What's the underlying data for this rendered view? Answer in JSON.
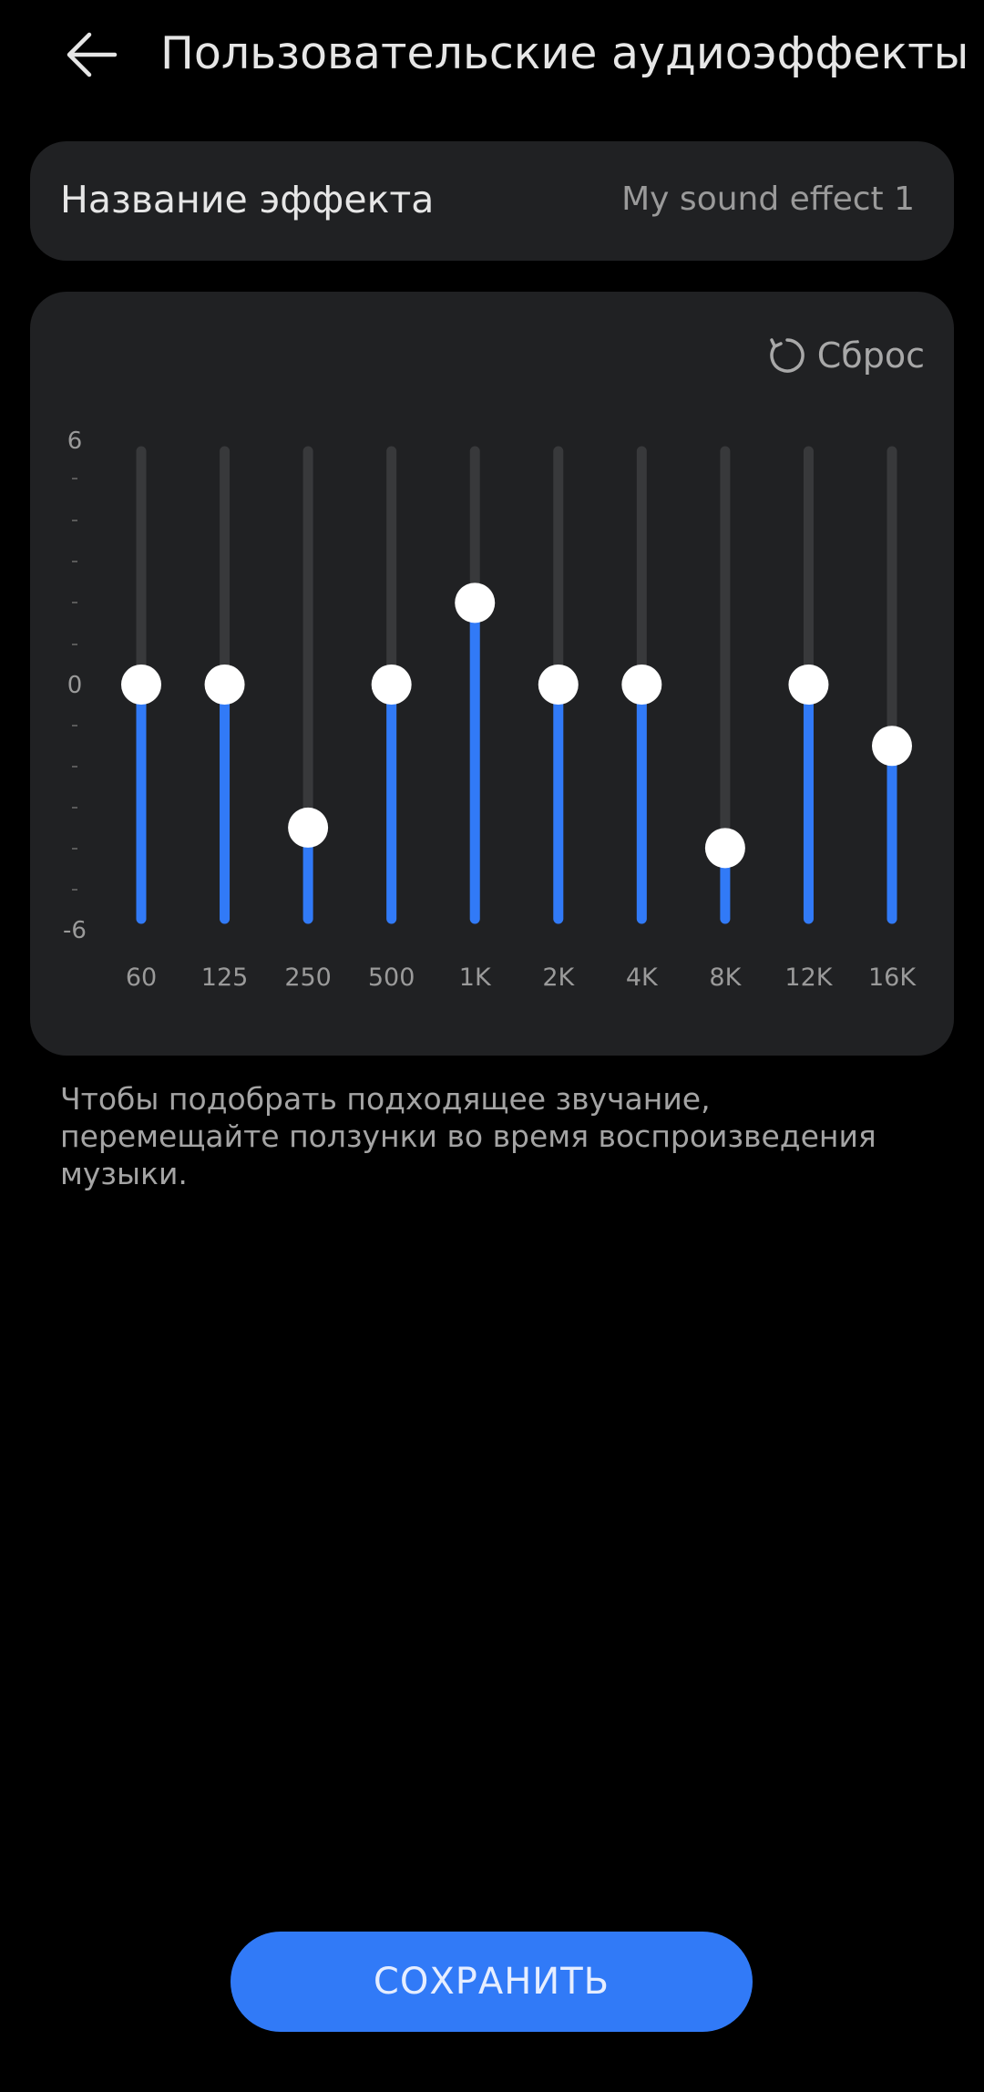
{
  "header": {
    "back_icon": "back-arrow-icon",
    "title": "Пользовательские аудиоэффекты"
  },
  "effect_name": {
    "label": "Название эффекта",
    "value": "My sound effect 1"
  },
  "equalizer": {
    "reset_label": "Сброс",
    "reset_icon": "reset-icon",
    "scale": {
      "max_label": "6",
      "mid_label": "0",
      "min_label": "-6",
      "min": -6,
      "max": 6
    },
    "bands": [
      {
        "label": "60",
        "level": 0
      },
      {
        "label": "125",
        "level": 0
      },
      {
        "label": "250",
        "level": -3.5
      },
      {
        "label": "500",
        "level": 0
      },
      {
        "label": "1K",
        "level": 2
      },
      {
        "label": "2K",
        "level": 0
      },
      {
        "label": "4K",
        "level": 0
      },
      {
        "label": "8K",
        "level": -4
      },
      {
        "label": "12K",
        "level": 0
      },
      {
        "label": "16K",
        "level": -1.5
      }
    ],
    "colors": {
      "fill": "#317af7",
      "track": "#38393b",
      "knob": "#ffffff"
    }
  },
  "hint_text": "Чтобы подобрать подходящее звучание, перемещайте ползунки во время воспроизведения музыки.",
  "save_button": {
    "label": "СОХРАНИТЬ",
    "color": "#317af7"
  }
}
